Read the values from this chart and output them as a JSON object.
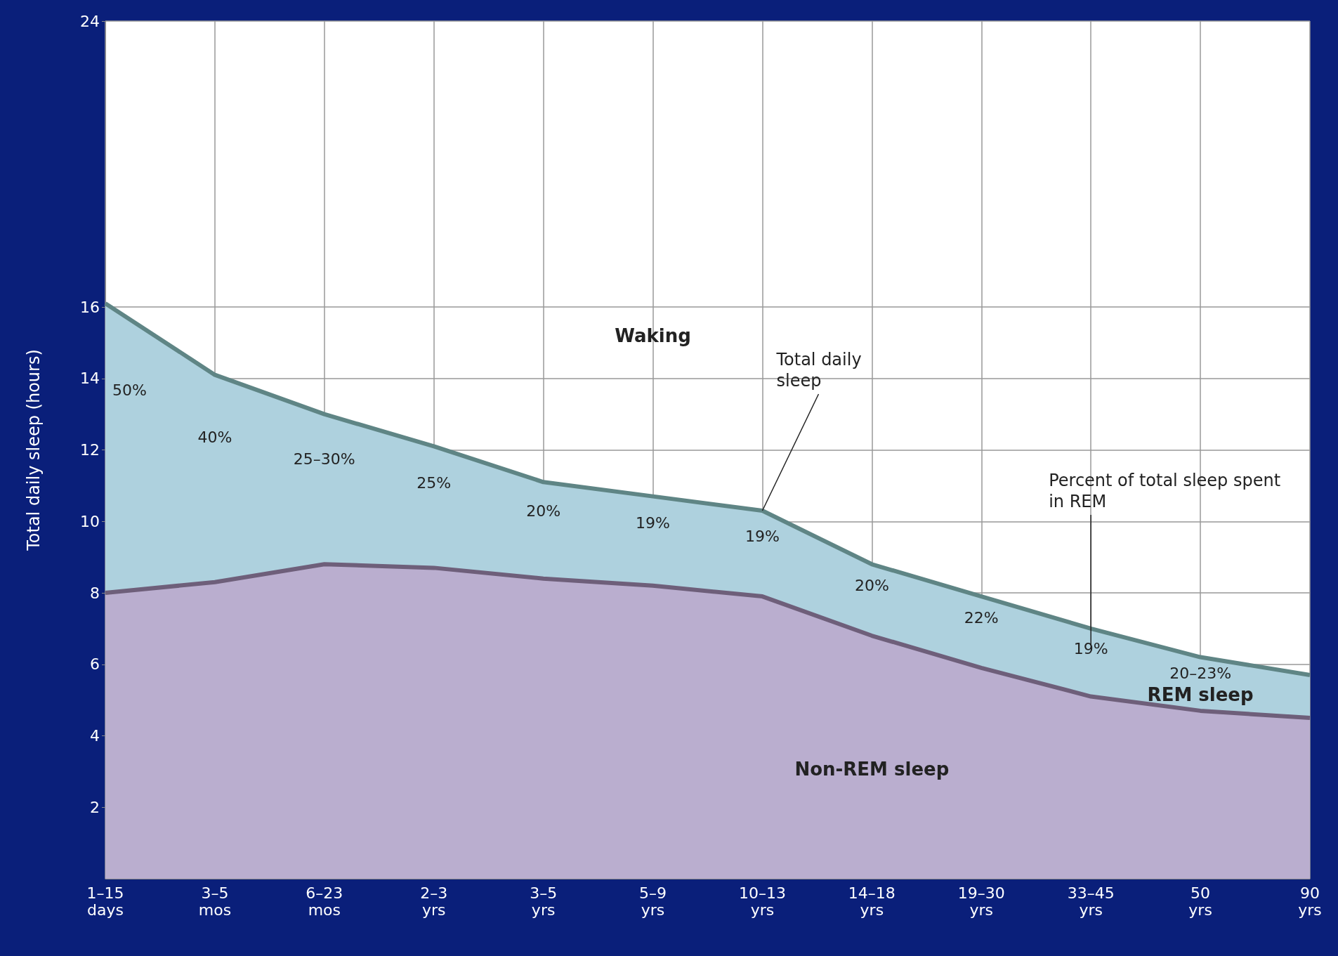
{
  "chart_data": {
    "type": "area",
    "stacked": true,
    "ylabel": "Total daily sleep (hours)",
    "categories": [
      "1–15 days",
      "3–5 mos",
      "6–23 mos",
      "2–3 yrs",
      "3–5 yrs",
      "5–9 yrs",
      "10–13 yrs",
      "14–18 yrs",
      "19–30 yrs",
      "33–45 yrs",
      "50 yrs",
      "90 yrs"
    ],
    "series": [
      {
        "name": "Non-REM sleep",
        "color": "#baaecf",
        "values": [
          8.0,
          8.3,
          8.8,
          8.7,
          8.4,
          8.2,
          7.9,
          6.8,
          5.9,
          5.1,
          4.7,
          4.5
        ]
      },
      {
        "name": "REM sleep",
        "color": "#aed1de",
        "values": [
          8.1,
          5.8,
          4.2,
          3.4,
          2.7,
          2.5,
          2.4,
          2.0,
          2.0,
          1.9,
          1.5,
          1.2
        ]
      }
    ],
    "ylim": [
      0,
      24
    ],
    "yticks": [
      2,
      4,
      6,
      8,
      10,
      12,
      14,
      16,
      24
    ],
    "grid": true,
    "legend": false,
    "marker": "none",
    "annotations": [
      "Waking",
      {
        "text": "Total daily sleep",
        "x": "10–13 yrs",
        "y": 10.3
      },
      "Percent of total sleep spent in REM",
      "50%",
      "40%",
      "25–30%",
      "25%",
      "20%",
      "19%",
      "19%",
      "20%",
      "22%",
      "19%",
      "20–23%"
    ]
  }
}
